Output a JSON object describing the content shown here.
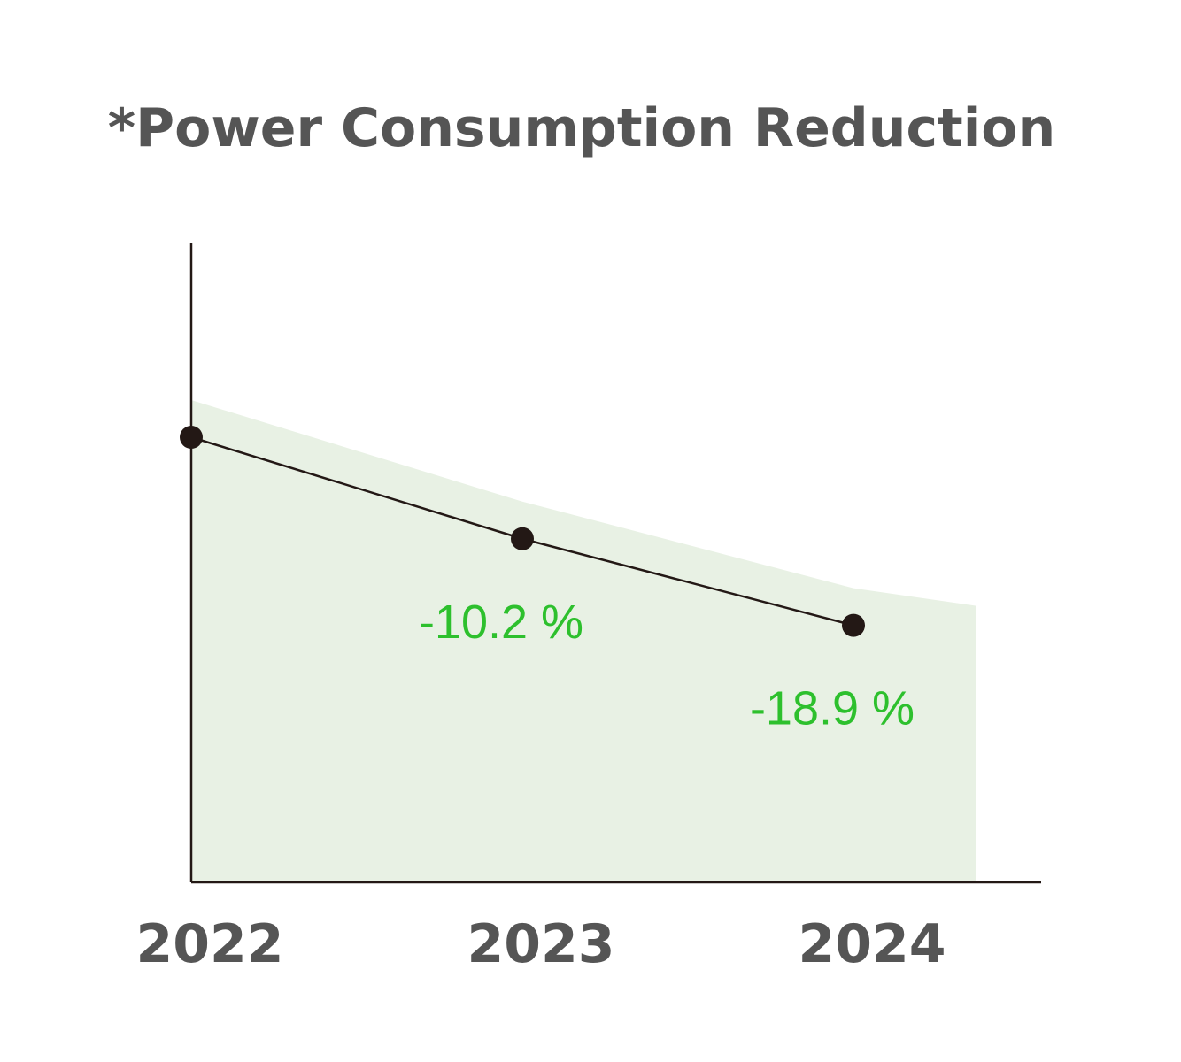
{
  "chart_data": {
    "type": "line",
    "title": "*Power Consumption Reduction",
    "xlabel": "",
    "ylabel": "",
    "categories": [
      "2022",
      "2023",
      "2024"
    ],
    "series": [
      {
        "values": [
          0,
          -10.2,
          -18.9
        ],
        "labels": [
          "",
          "-10.2 %",
          "-18.9 %"
        ]
      }
    ],
    "ylim": [
      -46,
      0
    ],
    "grid": false,
    "legend": "none",
    "colors": {
      "line": "#231815",
      "point": "#231815",
      "area": "#e8f1e4",
      "axis": "#231815",
      "data_label": "#2dc02d",
      "text": "#555555"
    }
  }
}
